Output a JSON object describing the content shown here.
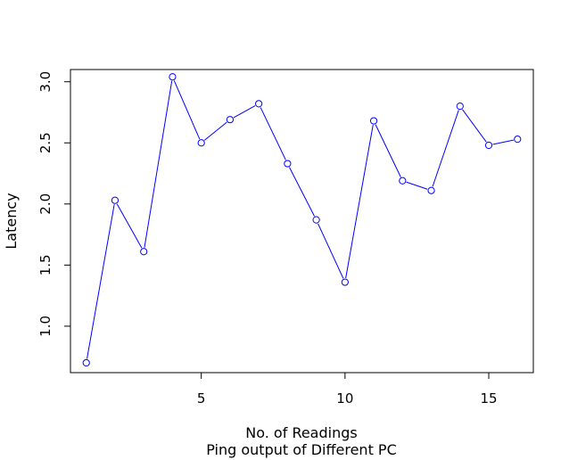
{
  "chart_data": {
    "type": "line",
    "xlabel": "No. of Readings",
    "subtitle": "Ping output of Different PC",
    "ylabel": "Latency",
    "xlim": [
      0.45,
      16.55
    ],
    "ylim": [
      0.62,
      3.1
    ],
    "x_ticks": [
      5,
      10,
      15
    ],
    "y_ticks": [
      1.0,
      1.5,
      2.0,
      2.5,
      3.0
    ],
    "x_tick_labels": [
      "5",
      "10",
      "15"
    ],
    "y_tick_labels": [
      "1.0",
      "1.5",
      "2.0",
      "2.5",
      "3.0"
    ],
    "grid": false,
    "series_color": "#0000ff",
    "marker": "open-circle",
    "x": [
      1,
      2,
      3,
      4,
      5,
      6,
      7,
      8,
      9,
      10,
      11,
      12,
      13,
      14,
      15,
      16
    ],
    "y": [
      0.7,
      2.03,
      1.61,
      3.04,
      2.5,
      2.69,
      2.82,
      2.33,
      1.87,
      1.36,
      2.68,
      2.19,
      2.11,
      2.8,
      2.48,
      2.53
    ]
  }
}
